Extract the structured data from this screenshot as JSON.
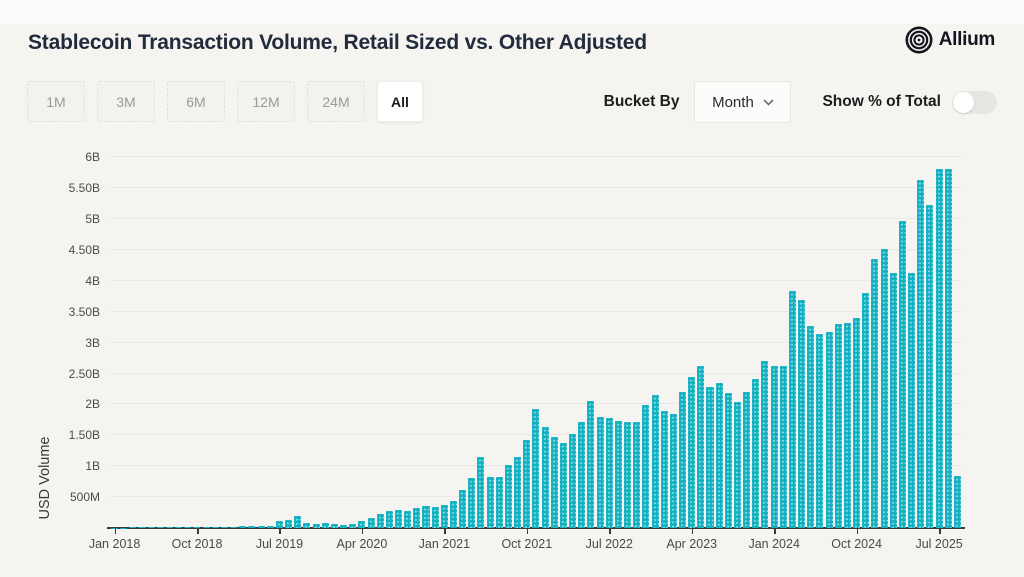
{
  "header": {
    "title": "Stablecoin Transaction Volume, Retail Sized vs. Other Adjusted",
    "logo_text": "Allium"
  },
  "toolbar": {
    "range_buttons": [
      {
        "label": "1M",
        "active": false
      },
      {
        "label": "3M",
        "active": false
      },
      {
        "label": "6M",
        "active": false
      },
      {
        "label": "12M",
        "active": false
      },
      {
        "label": "24M",
        "active": false
      },
      {
        "label": "All",
        "active": true
      }
    ],
    "bucket_by_label": "Bucket By",
    "bucket_value": "Month",
    "toggle_label": "Show % of Total",
    "toggle_on": false
  },
  "colors": {
    "bar": "#11b1c1",
    "title": "#212b3c",
    "background": "#f5f4f1"
  },
  "chart_data": {
    "type": "bar",
    "title": "Stablecoin Transaction Volume, Retail Sized vs. Other Adjusted",
    "xlabel": "",
    "ylabel": "USD Volume",
    "unit": "billions USD",
    "ylim": [
      0,
      6.12
    ],
    "grid": true,
    "legend": false,
    "yticks": [
      {
        "label": "500M",
        "v": 0.5
      },
      {
        "label": "1B",
        "v": 1.0
      },
      {
        "label": "1.50B",
        "v": 1.5
      },
      {
        "label": "2B",
        "v": 2.0
      },
      {
        "label": "2.50B",
        "v": 2.5
      },
      {
        "label": "3B",
        "v": 3.0
      },
      {
        "label": "3.50B",
        "v": 3.5
      },
      {
        "label": "4B",
        "v": 4.0
      },
      {
        "label": "4.50B",
        "v": 4.5
      },
      {
        "label": "5B",
        "v": 5.0
      },
      {
        "label": "5.50B",
        "v": 5.5
      },
      {
        "label": "6B",
        "v": 6.0
      }
    ],
    "xtick_labels": [
      "Jan 2018",
      "Oct 2018",
      "Jul 2019",
      "Apr 2020",
      "Jan 2021",
      "Oct 2021",
      "Jul 2022",
      "Apr 2023",
      "Jan 2024",
      "Oct 2024",
      "Jul 2025"
    ],
    "categories": [
      "Jan 2018",
      "Feb 2018",
      "Mar 2018",
      "Apr 2018",
      "May 2018",
      "Jun 2018",
      "Jul 2018",
      "Aug 2018",
      "Sep 2018",
      "Oct 2018",
      "Nov 2018",
      "Dec 2018",
      "Jan 2019",
      "Feb 2019",
      "Mar 2019",
      "Apr 2019",
      "May 2019",
      "Jun 2019",
      "Jul 2019",
      "Aug 2019",
      "Sep 2019",
      "Oct 2019",
      "Nov 2019",
      "Dec 2019",
      "Jan 2020",
      "Feb 2020",
      "Mar 2020",
      "Apr 2020",
      "May 2020",
      "Jun 2020",
      "Jul 2020",
      "Aug 2020",
      "Sep 2020",
      "Oct 2020",
      "Nov 2020",
      "Dec 2020",
      "Jan 2021",
      "Feb 2021",
      "Mar 2021",
      "Apr 2021",
      "May 2021",
      "Jun 2021",
      "Jul 2021",
      "Aug 2021",
      "Sep 2021",
      "Oct 2021",
      "Nov 2021",
      "Dec 2021",
      "Jan 2022",
      "Feb 2022",
      "Mar 2022",
      "Apr 2022",
      "May 2022",
      "Jun 2022",
      "Jul 2022",
      "Aug 2022",
      "Sep 2022",
      "Oct 2022",
      "Nov 2022",
      "Dec 2022",
      "Jan 2023",
      "Feb 2023",
      "Mar 2023",
      "Apr 2023",
      "May 2023",
      "Jun 2023",
      "Jul 2023",
      "Aug 2023",
      "Sep 2023",
      "Oct 2023",
      "Nov 2023",
      "Dec 2023",
      "Jan 2024",
      "Feb 2024",
      "Mar 2024",
      "Apr 2024",
      "May 2024",
      "Jun 2024",
      "Jul 2024",
      "Aug 2024",
      "Sep 2024",
      "Oct 2024",
      "Nov 2024",
      "Dec 2024",
      "Jan 2025",
      "Feb 2025",
      "Mar 2025",
      "Apr 2025",
      "May 2025",
      "Jun 2025",
      "Jul 2025",
      "Aug 2025",
      "Sep 2025"
    ],
    "values": [
      0.008,
      0.008,
      0.009,
      0.009,
      0.01,
      0.01,
      0.011,
      0.012,
      0.013,
      0.015,
      0.016,
      0.018,
      0.02,
      0.02,
      0.025,
      0.028,
      0.03,
      0.04,
      0.12,
      0.13,
      0.2,
      0.08,
      0.06,
      0.08,
      0.06,
      0.05,
      0.06,
      0.11,
      0.17,
      0.23,
      0.27,
      0.29,
      0.28,
      0.33,
      0.35,
      0.34,
      0.38,
      0.44,
      0.62,
      0.81,
      1.15,
      0.83,
      0.83,
      1.02,
      1.15,
      1.42,
      1.92,
      1.63,
      1.47,
      1.37,
      1.52,
      1.72,
      2.06,
      1.79,
      1.78,
      1.73,
      1.72,
      1.72,
      1.99,
      2.15,
      1.89,
      1.84,
      2.2,
      2.44,
      2.62,
      2.28,
      2.35,
      2.18,
      2.04,
      2.2,
      2.41,
      2.7,
      2.62,
      2.62,
      3.84,
      3.69,
      3.27,
      3.14,
      3.17,
      3.3,
      3.32,
      3.4,
      3.81,
      4.35,
      4.51,
      4.13,
      4.97,
      4.13,
      5.64,
      5.23,
      5.81,
      5.82,
      0.85
    ]
  }
}
